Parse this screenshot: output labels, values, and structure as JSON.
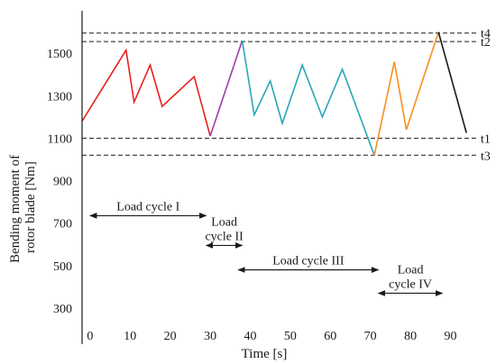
{
  "chart_data": {
    "type": "line",
    "title": "",
    "xlabel": "Time [s]",
    "ylabel_lines": [
      "Bending moment of",
      "rotor blade [Nm]"
    ],
    "xlim": [
      -2,
      98
    ],
    "ylim": [
      130,
      1700
    ],
    "x_ticks": [
      0,
      10,
      20,
      30,
      40,
      50,
      60,
      70,
      80,
      90
    ],
    "y_ticks": [
      300,
      500,
      700,
      900,
      1100,
      1300,
      1500
    ],
    "grid": false,
    "legend": "none",
    "series": [
      {
        "color": "#e8211d",
        "points": [
          [
            -2,
            1180
          ],
          [
            9,
            1515
          ],
          [
            11,
            1270
          ],
          [
            15,
            1445
          ],
          [
            18,
            1250
          ],
          [
            26,
            1390
          ],
          [
            30,
            1110
          ]
        ]
      },
      {
        "color": "#9b3fa8",
        "points": [
          [
            30,
            1110
          ],
          [
            38,
            1560
          ]
        ]
      },
      {
        "color": "#2ba6b8",
        "points": [
          [
            38,
            1560
          ],
          [
            41,
            1210
          ],
          [
            45,
            1370
          ],
          [
            48,
            1170
          ],
          [
            53,
            1445
          ],
          [
            58,
            1200
          ],
          [
            63,
            1425
          ],
          [
            71,
            1020
          ]
        ]
      },
      {
        "color": "#f7901e",
        "points": [
          [
            71,
            1020
          ],
          [
            76,
            1460
          ],
          [
            79,
            1140
          ],
          [
            87,
            1600
          ]
        ]
      },
      {
        "color": "#1a1a1a",
        "points": [
          [
            87,
            1600
          ],
          [
            94,
            1125
          ]
        ]
      }
    ],
    "reference_lines": [
      {
        "label": "t4",
        "y": 1595
      },
      {
        "label": "t2",
        "y": 1555
      },
      {
        "label": "t1",
        "y": 1100
      },
      {
        "label": "t3",
        "y": 1020
      }
    ],
    "annotations": [
      {
        "lines": [
          "Load cycle I"
        ],
        "x_start": 0,
        "x_end": 29,
        "arrow_y": 735
      },
      {
        "lines": [
          "Load",
          "cycle II"
        ],
        "x_start": 29,
        "x_end": 38,
        "arrow_y": 595
      },
      {
        "lines": [
          "Load cycle III"
        ],
        "x_start": 37,
        "x_end": 72,
        "arrow_y": 480
      },
      {
        "lines": [
          "Load",
          "cycle IV"
        ],
        "x_start": 72,
        "x_end": 88,
        "arrow_y": 370
      }
    ]
  }
}
